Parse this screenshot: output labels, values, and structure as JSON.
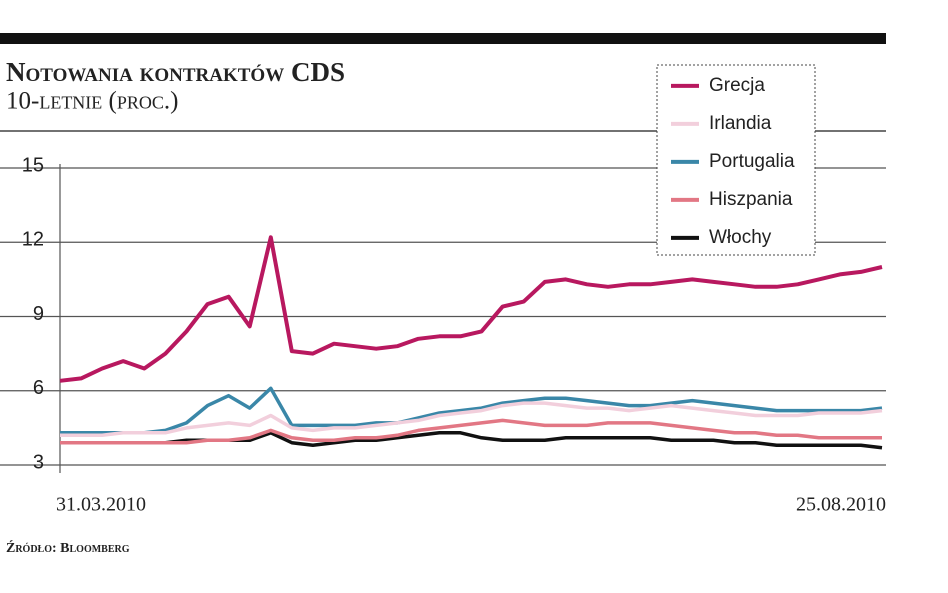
{
  "chart_data": {
    "type": "line",
    "title": "Notowania kontraktów CDS",
    "subtitle": "10-letnie (proc.)",
    "source": "Źródło: Bloomberg",
    "categories": [
      "31.03.2010",
      null,
      null,
      null,
      null,
      null,
      null,
      null,
      null,
      null,
      null,
      null,
      null,
      null,
      null,
      null,
      null,
      null,
      null,
      null,
      null,
      null,
      null,
      null,
      null,
      null,
      null,
      null,
      null,
      null,
      null,
      null,
      null,
      null,
      null,
      null,
      null,
      null,
      null,
      "25.08.2010"
    ],
    "series": [
      {
        "name": "Grecja",
        "color": "#b8185f",
        "values": [
          6.4,
          6.5,
          6.9,
          7.2,
          6.9,
          7.5,
          8.4,
          9.5,
          9.8,
          8.6,
          12.2,
          7.6,
          7.5,
          7.9,
          7.8,
          7.7,
          7.8,
          8.1,
          8.2,
          8.2,
          8.4,
          9.4,
          9.6,
          10.4,
          10.5,
          10.3,
          10.2,
          10.3,
          10.3,
          10.4,
          10.5,
          10.4,
          10.3,
          10.2,
          10.2,
          10.3,
          10.5,
          10.7,
          10.8,
          11.0
        ]
      },
      {
        "name": "Irlandia",
        "color": "#f2cfdc",
        "values": [
          4.2,
          4.2,
          4.2,
          4.3,
          4.3,
          4.3,
          4.5,
          4.6,
          4.7,
          4.6,
          5.0,
          4.5,
          4.4,
          4.5,
          4.5,
          4.6,
          4.7,
          4.8,
          5.0,
          5.1,
          5.2,
          5.4,
          5.5,
          5.5,
          5.4,
          5.3,
          5.3,
          5.2,
          5.3,
          5.4,
          5.3,
          5.2,
          5.1,
          5.0,
          5.0,
          5.0,
          5.1,
          5.1,
          5.1,
          5.2
        ]
      },
      {
        "name": "Portugalia",
        "color": "#3a87a8",
        "values": [
          4.3,
          4.3,
          4.3,
          4.3,
          4.3,
          4.4,
          4.7,
          5.4,
          5.8,
          5.3,
          6.1,
          4.6,
          4.6,
          4.6,
          4.6,
          4.7,
          4.7,
          4.9,
          5.1,
          5.2,
          5.3,
          5.5,
          5.6,
          5.7,
          5.7,
          5.6,
          5.5,
          5.4,
          5.4,
          5.5,
          5.6,
          5.5,
          5.4,
          5.3,
          5.2,
          5.2,
          5.2,
          5.2,
          5.2,
          5.3
        ]
      },
      {
        "name": "Hiszpania",
        "color": "#e27784",
        "values": [
          3.9,
          3.9,
          3.9,
          3.9,
          3.9,
          3.9,
          3.9,
          4.0,
          4.0,
          4.1,
          4.4,
          4.1,
          4.0,
          4.0,
          4.1,
          4.1,
          4.2,
          4.4,
          4.5,
          4.6,
          4.7,
          4.8,
          4.7,
          4.6,
          4.6,
          4.6,
          4.7,
          4.7,
          4.7,
          4.6,
          4.5,
          4.4,
          4.3,
          4.3,
          4.2,
          4.2,
          4.1,
          4.1,
          4.1,
          4.1
        ]
      },
      {
        "name": "Włochy",
        "color": "#111111",
        "values": [
          3.9,
          3.9,
          3.9,
          3.9,
          3.9,
          3.9,
          4.0,
          4.0,
          4.0,
          4.0,
          4.3,
          3.9,
          3.8,
          3.9,
          4.0,
          4.0,
          4.1,
          4.2,
          4.3,
          4.3,
          4.1,
          4.0,
          4.0,
          4.0,
          4.1,
          4.1,
          4.1,
          4.1,
          4.1,
          4.0,
          4.0,
          4.0,
          3.9,
          3.9,
          3.8,
          3.8,
          3.8,
          3.8,
          3.8,
          3.7
        ]
      }
    ],
    "ylim": [
      3,
      15
    ],
    "yticks": [
      3,
      6,
      9,
      12,
      15
    ],
    "grid": true,
    "legend": "upper right"
  }
}
